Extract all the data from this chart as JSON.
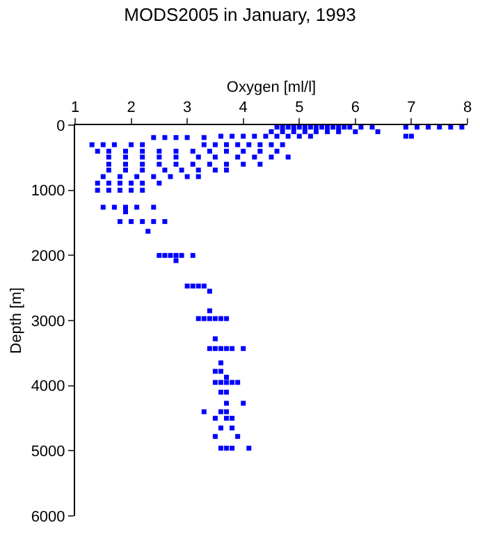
{
  "chart_data": {
    "type": "scatter",
    "title": "MODS2005 in January, 1993",
    "xlabel": "Oxygen [ml/l]",
    "ylabel": "Depth [m]",
    "xlim": [
      1,
      8
    ],
    "xticks": [
      1,
      2,
      3,
      4,
      5,
      6,
      7,
      8
    ],
    "ylim": [
      6000,
      0
    ],
    "yticks": [
      0,
      1000,
      2000,
      3000,
      4000,
      5000,
      6000
    ],
    "marker": "square",
    "series": [
      {
        "color": "#0000ff",
        "x": [
          4.6,
          4.7,
          4.8,
          4.9,
          5.0,
          5.1,
          5.2,
          5.3,
          5.4,
          5.5,
          5.6,
          5.7,
          5.8,
          5.9,
          6.1,
          6.3,
          6.9,
          7.1,
          7.3,
          7.5,
          7.7,
          7.9,
          4.5,
          4.7,
          4.9,
          5.1,
          5.3,
          5.5,
          5.7,
          6.0,
          6.4,
          3.6,
          3.8,
          4.0,
          4.2,
          4.4,
          4.6,
          4.8,
          5.0,
          5.2,
          6.9,
          7.0,
          2.4,
          2.6,
          2.8,
          3.0,
          3.3,
          1.3,
          1.5,
          1.7,
          2.0,
          2.2,
          3.3,
          3.5,
          3.7,
          3.9,
          4.1,
          4.3,
          4.5,
          4.7,
          1.4,
          1.6,
          1.9,
          2.2,
          2.5,
          2.8,
          3.1,
          3.4,
          3.7,
          4.0,
          4.3,
          4.6,
          1.6,
          1.9,
          2.2,
          2.5,
          2.8,
          3.2,
          3.5,
          3.9,
          4.2,
          4.5,
          4.8,
          1.6,
          1.9,
          2.2,
          2.5,
          2.8,
          3.1,
          3.4,
          3.7,
          4.0,
          4.3,
          1.6,
          1.9,
          2.2,
          2.6,
          2.9,
          3.2,
          3.5,
          3.7,
          1.5,
          1.8,
          2.1,
          2.4,
          2.7,
          3.0,
          3.2,
          1.4,
          1.6,
          1.8,
          2.0,
          2.2,
          2.5,
          1.4,
          1.6,
          1.8,
          2.0,
          2.2,
          1.5,
          1.7,
          1.9,
          2.1,
          2.4,
          1.9,
          1.8,
          2.0,
          2.2,
          2.4,
          2.6,
          2.3,
          2.5,
          2.6,
          2.7,
          2.8,
          2.9,
          3.1,
          2.8,
          3.0,
          3.1,
          3.2,
          3.3,
          3.4,
          3.4,
          3.2,
          3.3,
          3.4,
          3.5,
          3.6,
          3.7,
          3.5,
          3.4,
          3.5,
          3.6,
          3.7,
          3.8,
          4.0,
          3.6,
          3.5,
          3.6,
          3.7,
          3.5,
          3.6,
          3.7,
          3.8,
          3.9,
          3.6,
          3.7,
          3.7,
          4.0,
          3.3,
          3.6,
          3.7,
          3.5,
          3.7,
          3.8,
          3.6,
          3.8,
          3.5,
          3.9,
          3.6,
          3.7,
          3.8,
          4.1
        ],
        "values": [
          30,
          30,
          30,
          30,
          30,
          30,
          30,
          30,
          30,
          30,
          30,
          30,
          30,
          30,
          30,
          30,
          30,
          30,
          30,
          30,
          30,
          30,
          100,
          100,
          100,
          100,
          100,
          100,
          100,
          100,
          100,
          170,
          170,
          170,
          170,
          170,
          170,
          170,
          170,
          170,
          170,
          170,
          190,
          190,
          190,
          190,
          190,
          300,
          300,
          300,
          300,
          300,
          300,
          300,
          300,
          300,
          300,
          300,
          300,
          300,
          400,
          400,
          400,
          400,
          400,
          400,
          400,
          400,
          400,
          400,
          400,
          400,
          490,
          490,
          490,
          490,
          490,
          490,
          490,
          490,
          490,
          490,
          490,
          600,
          600,
          600,
          600,
          600,
          600,
          600,
          600,
          600,
          600,
          690,
          690,
          690,
          690,
          690,
          690,
          690,
          690,
          790,
          790,
          790,
          790,
          790,
          790,
          790,
          890,
          890,
          890,
          890,
          890,
          890,
          1000,
          1000,
          1000,
          1000,
          1000,
          1260,
          1260,
          1260,
          1260,
          1260,
          1330,
          1480,
          1480,
          1480,
          1480,
          1480,
          1630,
          2000,
          2000,
          2000,
          2000,
          2000,
          2000,
          2080,
          2470,
          2470,
          2470,
          2470,
          2550,
          2850,
          2970,
          2970,
          2970,
          2970,
          2970,
          2970,
          3280,
          3430,
          3430,
          3430,
          3430,
          3430,
          3430,
          3650,
          3780,
          3780,
          3870,
          3950,
          3950,
          3950,
          3950,
          3950,
          4100,
          4100,
          4270,
          4270,
          4400,
          4400,
          4400,
          4500,
          4500,
          4500,
          4650,
          4650,
          4780,
          4780,
          4960,
          4960,
          4960,
          4960
        ]
      }
    ]
  }
}
